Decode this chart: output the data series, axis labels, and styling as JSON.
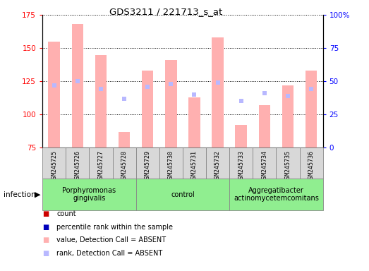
{
  "title": "GDS3211 / 221713_s_at",
  "samples": [
    "GSM245725",
    "GSM245726",
    "GSM245727",
    "GSM245728",
    "GSM245729",
    "GSM245730",
    "GSM245731",
    "GSM245732",
    "GSM245733",
    "GSM245734",
    "GSM245735",
    "GSM245736"
  ],
  "bar_values": [
    155,
    168,
    145,
    87,
    133,
    141,
    113,
    158,
    92,
    107,
    122,
    133
  ],
  "rank_values": [
    122,
    125,
    119,
    112,
    121,
    123,
    115,
    124,
    110,
    116,
    114,
    119
  ],
  "bar_color_absent": "#FFB0B0",
  "rank_color_absent": "#B8B8FF",
  "ylim_left": [
    75,
    175
  ],
  "ylim_right": [
    0,
    100
  ],
  "yticks_left": [
    75,
    100,
    125,
    150,
    175
  ],
  "yticks_right": [
    0,
    25,
    50,
    75,
    100
  ],
  "ytick_labels_right": [
    "0",
    "25",
    "50",
    "75",
    "100%"
  ],
  "bar_bottom": 75,
  "bar_width": 0.5,
  "groups": [
    {
      "label": "Porphyromonas\ngingivalis",
      "start": 0,
      "end": 4,
      "color": "#90EE90"
    },
    {
      "label": "control",
      "start": 4,
      "end": 8,
      "color": "#90EE90"
    },
    {
      "label": "Aggregatibacter\nactinomycetemcomitans",
      "start": 8,
      "end": 12,
      "color": "#90EE90"
    }
  ],
  "sample_box_color": "#D8D8D8",
  "sample_box_edge": "#888888",
  "legend_items": [
    {
      "label": "count",
      "color": "#CC0000"
    },
    {
      "label": "percentile rank within the sample",
      "color": "#0000BB"
    },
    {
      "label": "value, Detection Call = ABSENT",
      "color": "#FFB0B0"
    },
    {
      "label": "rank, Detection Call = ABSENT",
      "color": "#B8B8FF"
    }
  ]
}
